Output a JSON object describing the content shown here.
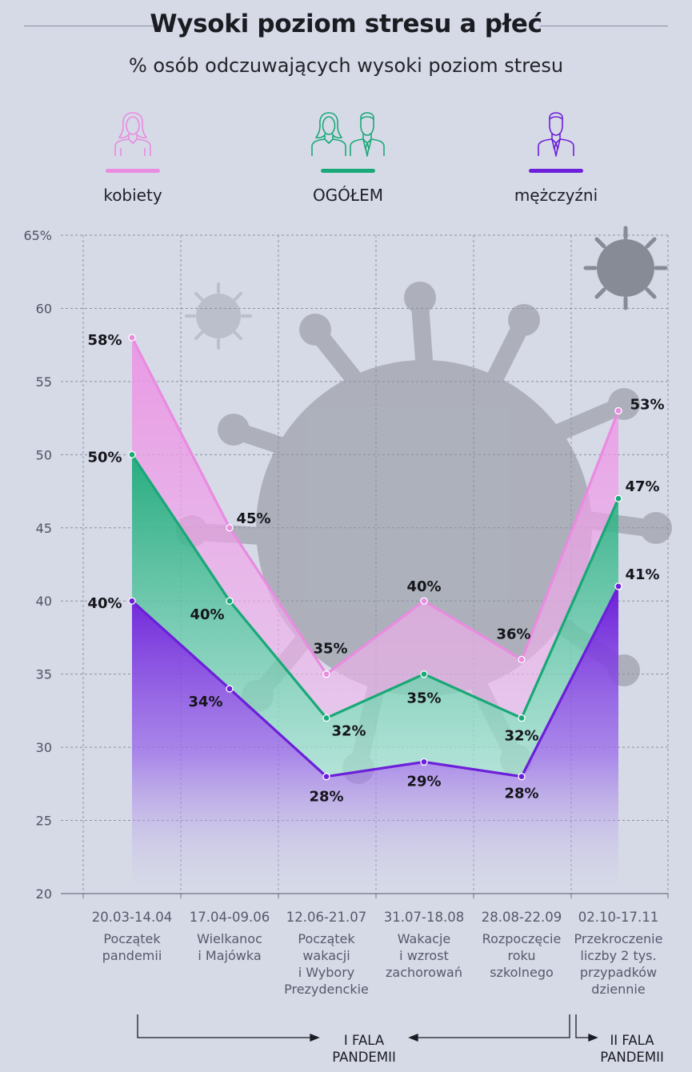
{
  "title": "Wysoki poziom stresu a płeć",
  "subtitle": "% osób odczuwających wysoki poziom stresu",
  "legend": [
    {
      "label": "kobiety",
      "color": "#e98be0",
      "icon": "woman-icon"
    },
    {
      "label": "OGÓŁEM",
      "color": "#19a877",
      "icon": "people-icon"
    },
    {
      "label": "mężczyźni",
      "color": "#6c1fd9",
      "icon": "man-icon"
    }
  ],
  "colors": {
    "women": "#e98be0",
    "total": "#19a877",
    "men": "#6c1fd9",
    "grid": "#8c91a3",
    "axis": "#6e7386",
    "background": "#d6dae7"
  },
  "periods": [
    {
      "date": "20.03-14.04",
      "desc": "Początek\npandemii"
    },
    {
      "date": "17.04-09.06",
      "desc": "Wielkanoc\ni Majówka"
    },
    {
      "date": "12.06-21.07",
      "desc": "Początek\nwakacji\ni Wybory\nPrezydenckie"
    },
    {
      "date": "31.07-18.08",
      "desc": "Wakacje\ni wzrost\nzachorowań"
    },
    {
      "date": "28.08-22.09",
      "desc": "Rozpoczęcie\nroku\nszkolnego"
    },
    {
      "date": "02.10-17.11",
      "desc": "Przekroczenie\nliczby 2 tys.\nprzypadków\ndziennie"
    }
  ],
  "waves": {
    "first": "I FALA\nPANDEMII",
    "second": "II FALA\nPANDEMII"
  },
  "chart_data": {
    "type": "area",
    "categories": [
      "20.03-14.04",
      "17.04-09.06",
      "12.06-21.07",
      "31.07-18.08",
      "28.08-22.09",
      "02.10-17.11"
    ],
    "series": [
      {
        "name": "kobiety",
        "values": [
          58,
          45,
          35,
          40,
          36,
          53
        ],
        "labels": [
          "58%",
          "45%",
          "35%",
          "40%",
          "36%",
          "53%"
        ]
      },
      {
        "name": "OGÓŁEM",
        "values": [
          50,
          40,
          32,
          35,
          32,
          47
        ],
        "labels": [
          "50%",
          "40%",
          "32%",
          "35%",
          "32%",
          "47%"
        ]
      },
      {
        "name": "mężczyźni",
        "values": [
          40,
          34,
          28,
          29,
          28,
          41
        ],
        "labels": [
          "40%",
          "34%",
          "28%",
          "29%",
          "28%",
          "41%"
        ]
      }
    ],
    "ylim": [
      20,
      65
    ],
    "yticks": [
      20,
      25,
      30,
      35,
      40,
      45,
      50,
      55,
      60,
      65
    ],
    "ytick_labels": [
      "20",
      "25",
      "30",
      "35",
      "40",
      "45",
      "50",
      "55",
      "60",
      "65%"
    ],
    "grid": true
  }
}
